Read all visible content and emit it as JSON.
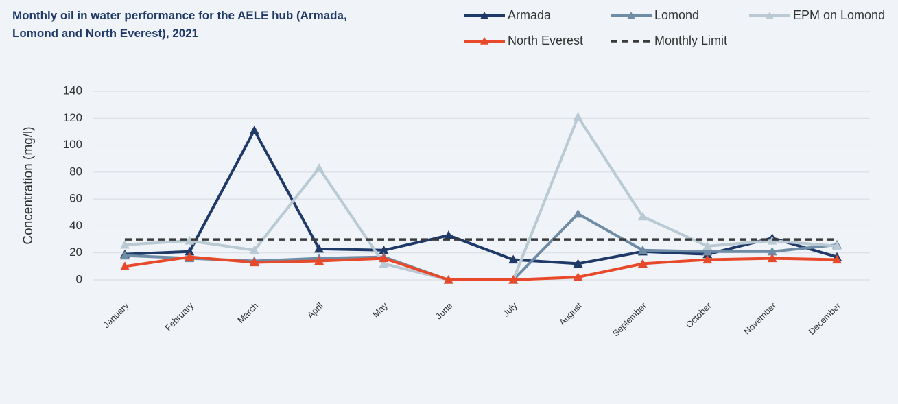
{
  "chart_data": {
    "type": "line",
    "title": "Monthly oil in water performance for the AELE hub (Armada, Lomond and North Everest), 2021",
    "y_label": "Concentration (mg/l)",
    "categories": [
      "January",
      "February",
      "March",
      "April",
      "May",
      "June",
      "July",
      "August",
      "September",
      "October",
      "November",
      "December"
    ],
    "series": [
      {
        "name": "Armada",
        "color": "#1f3a68",
        "marker": "triangle",
        "values": [
          19,
          21,
          111,
          23,
          22,
          33,
          15,
          12,
          21,
          19,
          31,
          17
        ]
      },
      {
        "name": "Lomond",
        "color": "#6e8ca6",
        "marker": "triangle",
        "values": [
          18,
          16,
          14,
          16,
          17,
          0,
          0,
          49,
          22,
          21,
          21,
          26
        ]
      },
      {
        "name": "EPM on Lomond",
        "color": "#b9cad4",
        "marker": "triangle",
        "values": [
          26,
          29,
          22,
          83,
          12,
          0,
          0,
          121,
          47,
          25,
          29,
          25
        ]
      },
      {
        "name": "North Everest",
        "color": "#e8492a",
        "marker": "triangle",
        "values": [
          10,
          17,
          13,
          14,
          16,
          0,
          0,
          2,
          12,
          15,
          16,
          15
        ]
      },
      {
        "name": "Monthly Limit",
        "color": "#3a3a3a",
        "dashed": true,
        "values": [
          30,
          30,
          30,
          30,
          30,
          30,
          30,
          30,
          30,
          30,
          30,
          30
        ]
      }
    ],
    "ylim": [
      0,
      140
    ],
    "yticks": [
      0,
      20,
      40,
      60,
      80,
      100,
      120,
      140
    ],
    "grid": true,
    "legend": "top-right"
  }
}
